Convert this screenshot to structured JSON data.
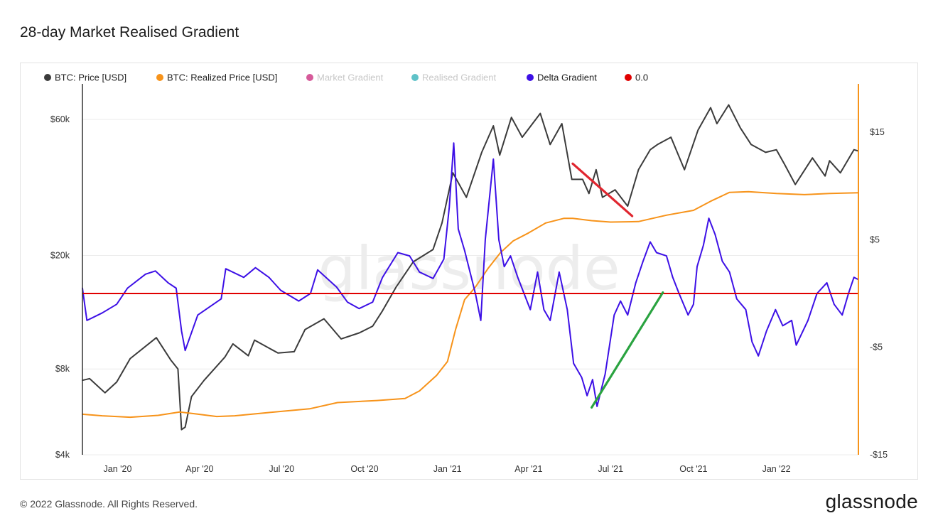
{
  "header": {
    "title": "28-day Market Realised Gradient"
  },
  "footer": {
    "copyright": "© 2022 Glassnode. All Rights Reserved.",
    "brand": "glassnode"
  },
  "watermark": "glassnode",
  "chart_data": {
    "type": "line",
    "legend": [
      {
        "label": "BTC: Price [USD]",
        "color": "#3b3b3b",
        "faded": false
      },
      {
        "label": "BTC: Realized Price [USD]",
        "color": "#f7931a",
        "faded": false
      },
      {
        "label": "Market Gradient",
        "color": "#d65a9a",
        "faded": true
      },
      {
        "label": "Realised Gradient",
        "color": "#5fc2c8",
        "faded": true
      },
      {
        "label": "Delta Gradient",
        "color": "#3d10e6",
        "faded": false
      },
      {
        "label": "0.0",
        "color": "#e00000",
        "faded": false
      }
    ],
    "legend_position": "top-left",
    "x_range": [
      "2019-11-23",
      "2022-04-02"
    ],
    "x_ticks": [
      {
        "label": "Jan '20",
        "date": "2020-01-01"
      },
      {
        "label": "Apr '20",
        "date": "2020-04-01"
      },
      {
        "label": "Jul '20",
        "date": "2020-07-01"
      },
      {
        "label": "Oct '20",
        "date": "2020-10-01"
      },
      {
        "label": "Jan '21",
        "date": "2021-01-01"
      },
      {
        "label": "Apr '21",
        "date": "2021-04-01"
      },
      {
        "label": "Jul '21",
        "date": "2021-07-01"
      },
      {
        "label": "Oct '21",
        "date": "2021-10-01"
      },
      {
        "label": "Jan '22",
        "date": "2022-01-01"
      }
    ],
    "y_left": {
      "scale": "log",
      "range": [
        4000,
        80000
      ],
      "ticks": [
        {
          "label": "$4k",
          "value": 4000
        },
        {
          "label": "$8k",
          "value": 8000
        },
        {
          "label": "$20k",
          "value": 20000
        },
        {
          "label": "$60k",
          "value": 60000
        }
      ]
    },
    "y_right": {
      "scale": "linear",
      "range": [
        -15,
        19.5
      ],
      "ticks": [
        {
          "label": "$15",
          "value": 15
        },
        {
          "label": "$5",
          "value": 5
        },
        {
          "label": "-$5",
          "value": -5
        },
        {
          "label": "-$15",
          "value": -15
        }
      ]
    },
    "series": [
      {
        "name": "BTC: Price [USD]",
        "axis": "left",
        "color": "#3b3b3b",
        "points": [
          [
            "2019-11-23",
            7300
          ],
          [
            "2019-12-01",
            7400
          ],
          [
            "2019-12-18",
            6600
          ],
          [
            "2019-12-31",
            7200
          ],
          [
            "2020-01-15",
            8700
          ],
          [
            "2020-02-13",
            10300
          ],
          [
            "2020-02-29",
            8600
          ],
          [
            "2020-03-08",
            8000
          ],
          [
            "2020-03-12",
            4900
          ],
          [
            "2020-03-16",
            5000
          ],
          [
            "2020-03-23",
            6400
          ],
          [
            "2020-04-06",
            7300
          ],
          [
            "2020-04-29",
            8800
          ],
          [
            "2020-05-08",
            9800
          ],
          [
            "2020-05-25",
            8900
          ],
          [
            "2020-06-01",
            10100
          ],
          [
            "2020-06-27",
            9100
          ],
          [
            "2020-07-15",
            9200
          ],
          [
            "2020-07-27",
            11000
          ],
          [
            "2020-08-17",
            12000
          ],
          [
            "2020-09-05",
            10200
          ],
          [
            "2020-09-25",
            10700
          ],
          [
            "2020-10-10",
            11300
          ],
          [
            "2020-10-21",
            12800
          ],
          [
            "2020-11-05",
            15500
          ],
          [
            "2020-11-24",
            19000
          ],
          [
            "2020-12-16",
            21000
          ],
          [
            "2020-12-26",
            26000
          ],
          [
            "2021-01-07",
            39000
          ],
          [
            "2021-01-22",
            32000
          ],
          [
            "2021-02-08",
            46000
          ],
          [
            "2021-02-21",
            57000
          ],
          [
            "2021-02-28",
            45000
          ],
          [
            "2021-03-13",
            61000
          ],
          [
            "2021-03-25",
            52000
          ],
          [
            "2021-04-14",
            63000
          ],
          [
            "2021-04-25",
            49000
          ],
          [
            "2021-05-08",
            58000
          ],
          [
            "2021-05-19",
            37000
          ],
          [
            "2021-05-31",
            37000
          ],
          [
            "2021-06-07",
            33000
          ],
          [
            "2021-06-15",
            40000
          ],
          [
            "2021-06-22",
            32000
          ],
          [
            "2021-07-06",
            34000
          ],
          [
            "2021-07-20",
            29800
          ],
          [
            "2021-08-01",
            40000
          ],
          [
            "2021-08-14",
            47000
          ],
          [
            "2021-08-22",
            49000
          ],
          [
            "2021-09-06",
            52000
          ],
          [
            "2021-09-21",
            40000
          ],
          [
            "2021-10-06",
            55000
          ],
          [
            "2021-10-20",
            66000
          ],
          [
            "2021-10-27",
            58000
          ],
          [
            "2021-11-09",
            67500
          ],
          [
            "2021-11-22",
            56000
          ],
          [
            "2021-12-04",
            49000
          ],
          [
            "2021-12-20",
            46000
          ],
          [
            "2022-01-01",
            47000
          ],
          [
            "2022-01-10",
            41800
          ],
          [
            "2022-01-22",
            35500
          ],
          [
            "2022-02-10",
            44000
          ],
          [
            "2022-02-24",
            38000
          ],
          [
            "2022-03-01",
            43000
          ],
          [
            "2022-03-13",
            39000
          ],
          [
            "2022-03-28",
            47000
          ],
          [
            "2022-04-02",
            46500
          ]
        ]
      },
      {
        "name": "BTC: Realized Price [USD]",
        "axis": "left",
        "color": "#f7931a",
        "points": [
          [
            "2019-11-23",
            5550
          ],
          [
            "2019-12-15",
            5480
          ],
          [
            "2020-01-15",
            5420
          ],
          [
            "2020-02-15",
            5500
          ],
          [
            "2020-03-10",
            5650
          ],
          [
            "2020-03-25",
            5580
          ],
          [
            "2020-04-20",
            5450
          ],
          [
            "2020-05-10",
            5480
          ],
          [
            "2020-06-15",
            5620
          ],
          [
            "2020-08-01",
            5800
          ],
          [
            "2020-09-01",
            6100
          ],
          [
            "2020-10-15",
            6200
          ],
          [
            "2020-11-15",
            6300
          ],
          [
            "2020-12-01",
            6700
          ],
          [
            "2020-12-20",
            7600
          ],
          [
            "2021-01-01",
            8500
          ],
          [
            "2021-01-10",
            11000
          ],
          [
            "2021-01-20",
            14000
          ],
          [
            "2021-02-01",
            15500
          ],
          [
            "2021-02-15",
            18000
          ],
          [
            "2021-03-01",
            20500
          ],
          [
            "2021-03-15",
            22500
          ],
          [
            "2021-04-01",
            24000
          ],
          [
            "2021-04-20",
            26000
          ],
          [
            "2021-05-10",
            27000
          ],
          [
            "2021-05-20",
            27000
          ],
          [
            "2021-06-10",
            26500
          ],
          [
            "2021-07-01",
            26200
          ],
          [
            "2021-08-01",
            26300
          ],
          [
            "2021-09-01",
            27700
          ],
          [
            "2021-10-01",
            28800
          ],
          [
            "2021-10-20",
            31000
          ],
          [
            "2021-11-10",
            33300
          ],
          [
            "2021-12-01",
            33500
          ],
          [
            "2022-01-01",
            33000
          ],
          [
            "2022-02-01",
            32700
          ],
          [
            "2022-03-01",
            33000
          ],
          [
            "2022-04-02",
            33200
          ]
        ]
      },
      {
        "name": "Delta Gradient",
        "axis": "right",
        "color": "#3d10e6",
        "points": [
          [
            "2019-11-23",
            0.5
          ],
          [
            "2019-11-28",
            -2.5
          ],
          [
            "2019-12-15",
            -1.8
          ],
          [
            "2019-12-31",
            -1.0
          ],
          [
            "2020-01-12",
            0.5
          ],
          [
            "2020-02-01",
            1.8
          ],
          [
            "2020-02-12",
            2.1
          ],
          [
            "2020-02-26",
            1.0
          ],
          [
            "2020-03-06",
            0.5
          ],
          [
            "2020-03-12",
            -3.5
          ],
          [
            "2020-03-16",
            -5.3
          ],
          [
            "2020-03-30",
            -2.0
          ],
          [
            "2020-04-25",
            -0.5
          ],
          [
            "2020-04-30",
            2.3
          ],
          [
            "2020-05-20",
            1.5
          ],
          [
            "2020-06-02",
            2.4
          ],
          [
            "2020-06-17",
            1.5
          ],
          [
            "2020-06-30",
            0.3
          ],
          [
            "2020-07-20",
            -0.7
          ],
          [
            "2020-08-02",
            0.0
          ],
          [
            "2020-08-10",
            2.2
          ],
          [
            "2020-08-31",
            0.6
          ],
          [
            "2020-09-12",
            -0.8
          ],
          [
            "2020-09-25",
            -1.4
          ],
          [
            "2020-10-10",
            -0.8
          ],
          [
            "2020-10-21",
            1.5
          ],
          [
            "2020-11-07",
            3.8
          ],
          [
            "2020-11-20",
            3.5
          ],
          [
            "2020-12-01",
            2.0
          ],
          [
            "2020-12-16",
            1.4
          ],
          [
            "2020-12-28",
            3.2
          ],
          [
            "2021-01-03",
            8.0
          ],
          [
            "2021-01-08",
            14.0
          ],
          [
            "2021-01-13",
            6.0
          ],
          [
            "2021-01-20",
            4.0
          ],
          [
            "2021-02-01",
            0.0
          ],
          [
            "2021-02-07",
            -2.5
          ],
          [
            "2021-02-12",
            5.0
          ],
          [
            "2021-02-21",
            12.5
          ],
          [
            "2021-02-27",
            5.0
          ],
          [
            "2021-03-05",
            2.5
          ],
          [
            "2021-03-12",
            3.5
          ],
          [
            "2021-03-20",
            1.5
          ],
          [
            "2021-04-03",
            -1.5
          ],
          [
            "2021-04-11",
            2.0
          ],
          [
            "2021-04-18",
            -1.5
          ],
          [
            "2021-04-25",
            -2.5
          ],
          [
            "2021-05-05",
            2.0
          ],
          [
            "2021-05-14",
            -1.5
          ],
          [
            "2021-05-21",
            -6.5
          ],
          [
            "2021-05-30",
            -7.8
          ],
          [
            "2021-06-05",
            -9.5
          ],
          [
            "2021-06-11",
            -8.0
          ],
          [
            "2021-06-16",
            -10.5
          ],
          [
            "2021-06-25",
            -7.5
          ],
          [
            "2021-07-05",
            -2.0
          ],
          [
            "2021-07-12",
            -0.7
          ],
          [
            "2021-07-20",
            -2.0
          ],
          [
            "2021-07-29",
            1.0
          ],
          [
            "2021-08-06",
            3.0
          ],
          [
            "2021-08-14",
            4.8
          ],
          [
            "2021-08-21",
            3.8
          ],
          [
            "2021-09-01",
            3.5
          ],
          [
            "2021-09-08",
            1.5
          ],
          [
            "2021-09-15",
            0.0
          ],
          [
            "2021-09-25",
            -2.0
          ],
          [
            "2021-10-01",
            -1.0
          ],
          [
            "2021-10-05",
            2.5
          ],
          [
            "2021-10-12",
            4.5
          ],
          [
            "2021-10-18",
            7.0
          ],
          [
            "2021-10-25",
            5.5
          ],
          [
            "2021-11-02",
            3.0
          ],
          [
            "2021-11-10",
            2.0
          ],
          [
            "2021-11-18",
            -0.5
          ],
          [
            "2021-11-28",
            -1.5
          ],
          [
            "2021-12-05",
            -4.5
          ],
          [
            "2021-12-12",
            -5.8
          ],
          [
            "2021-12-21",
            -3.5
          ],
          [
            "2021-12-31",
            -1.5
          ],
          [
            "2022-01-08",
            -3.0
          ],
          [
            "2022-01-18",
            -2.5
          ],
          [
            "2022-01-23",
            -4.8
          ],
          [
            "2022-02-05",
            -2.5
          ],
          [
            "2022-02-15",
            0.0
          ],
          [
            "2022-02-26",
            1.0
          ],
          [
            "2022-03-06",
            -1.0
          ],
          [
            "2022-03-15",
            -2.0
          ],
          [
            "2022-03-22",
            0.0
          ],
          [
            "2022-03-28",
            1.5
          ],
          [
            "2022-04-02",
            1.3
          ]
        ]
      },
      {
        "name": "0.0",
        "axis": "right",
        "color": "#e00000",
        "points": [
          [
            "2019-11-23",
            0.0
          ],
          [
            "2022-04-02",
            0.0
          ]
        ]
      }
    ],
    "annotations": [
      {
        "type": "trend-line",
        "color": "#e0262f",
        "axis": "left",
        "from": [
          "2021-05-20",
          42000
        ],
        "to": [
          "2021-07-25",
          27500
        ]
      },
      {
        "type": "trend-line",
        "color": "#2aa340",
        "axis": "right",
        "from": [
          "2021-06-10",
          -10.6
        ],
        "to": [
          "2021-08-28",
          0.1
        ]
      }
    ]
  }
}
